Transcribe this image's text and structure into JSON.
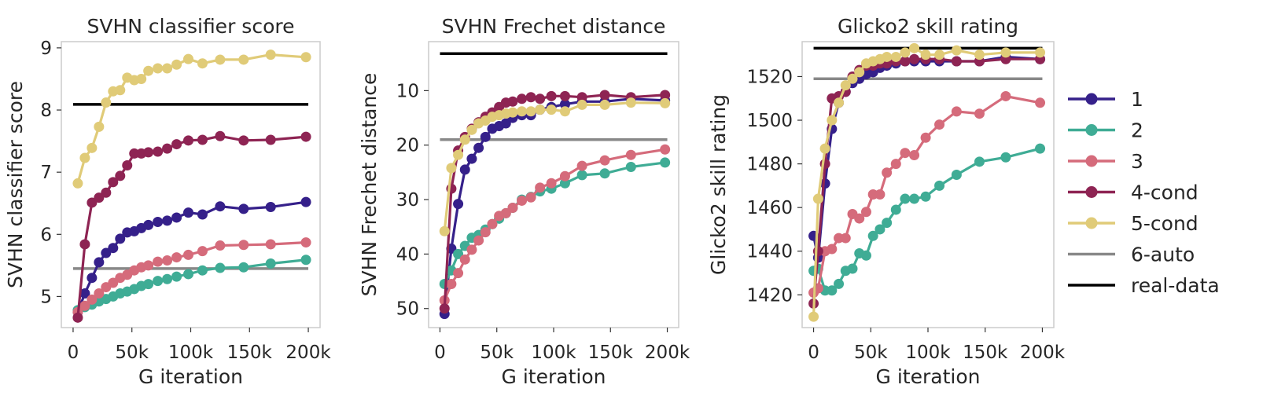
{
  "chart_data": [
    {
      "type": "line",
      "title": "SVHN classifier score",
      "xlabel": "G iteration",
      "ylabel": "SVHN classifier score",
      "xlim": [
        -10000,
        210000
      ],
      "ylim": [
        4.5,
        9.1
      ],
      "xticks": [
        0,
        50000,
        100000,
        150000,
        200000
      ],
      "xtick_labels": [
        "0",
        "50k",
        "100k",
        "150k",
        "200k"
      ],
      "yticks": [
        5,
        6,
        7,
        8,
        9
      ],
      "ytick_labels": [
        "5",
        "6",
        "7",
        "8",
        "9"
      ],
      "series": [
        {
          "name": "1",
          "x": [
            4000,
            10000,
            16000,
            22000,
            28000,
            34000,
            40000,
            46000,
            52000,
            58000,
            64000,
            72000,
            80000,
            88000,
            98000,
            110000,
            125000,
            145000,
            168000,
            198000
          ],
          "y": [
            4.75,
            5.05,
            5.3,
            5.55,
            5.7,
            5.78,
            5.93,
            6.03,
            6.05,
            6.1,
            6.15,
            6.2,
            6.22,
            6.27,
            6.35,
            6.32,
            6.45,
            6.41,
            6.44,
            6.52
          ]
        },
        {
          "name": "2",
          "x": [
            4000,
            10000,
            16000,
            22000,
            28000,
            34000,
            40000,
            46000,
            52000,
            58000,
            64000,
            72000,
            80000,
            88000,
            98000,
            110000,
            125000,
            145000,
            168000,
            198000
          ],
          "y": [
            4.78,
            4.83,
            4.87,
            4.92,
            4.96,
            5.0,
            5.05,
            5.08,
            5.12,
            5.17,
            5.2,
            5.25,
            5.28,
            5.32,
            5.36,
            5.42,
            5.46,
            5.47,
            5.53,
            5.59
          ]
        },
        {
          "name": "3",
          "x": [
            4000,
            10000,
            16000,
            22000,
            28000,
            34000,
            40000,
            46000,
            52000,
            58000,
            64000,
            72000,
            80000,
            88000,
            98000,
            110000,
            125000,
            145000,
            168000,
            198000
          ],
          "y": [
            4.75,
            4.85,
            4.95,
            5.05,
            5.15,
            5.22,
            5.3,
            5.35,
            5.42,
            5.47,
            5.5,
            5.56,
            5.58,
            5.63,
            5.67,
            5.73,
            5.82,
            5.83,
            5.84,
            5.87
          ]
        },
        {
          "name": "4-cond",
          "x": [
            4000,
            10000,
            16000,
            22000,
            28000,
            34000,
            40000,
            46000,
            52000,
            58000,
            64000,
            72000,
            80000,
            88000,
            98000,
            110000,
            125000,
            145000,
            168000,
            198000
          ],
          "y": [
            4.66,
            5.84,
            6.51,
            6.59,
            6.67,
            6.84,
            6.94,
            7.11,
            7.3,
            7.3,
            7.32,
            7.33,
            7.38,
            7.45,
            7.51,
            7.52,
            7.58,
            7.51,
            7.52,
            7.57
          ]
        },
        {
          "name": "5-cond",
          "x": [
            4000,
            10000,
            16000,
            22000,
            28000,
            34000,
            40000,
            46000,
            52000,
            58000,
            64000,
            72000,
            80000,
            88000,
            98000,
            110000,
            125000,
            145000,
            168000,
            198000
          ],
          "y": [
            6.82,
            7.23,
            7.39,
            7.73,
            8.12,
            8.3,
            8.32,
            8.52,
            8.48,
            8.5,
            8.63,
            8.67,
            8.67,
            8.73,
            8.82,
            8.75,
            8.81,
            8.81,
            8.89,
            8.85
          ]
        },
        {
          "name": "6-auto",
          "y_const": 5.45
        },
        {
          "name": "real-data",
          "y_const": 8.09
        }
      ]
    },
    {
      "type": "line",
      "title": "SVHN Frechet distance",
      "xlabel": "G iteration",
      "ylabel": "SVHN Frechet distance",
      "xlim": [
        -10000,
        210000
      ],
      "ylim": [
        53.5,
        1
      ],
      "inverted_y": true,
      "xticks": [
        0,
        50000,
        100000,
        150000,
        200000
      ],
      "xtick_labels": [
        "0",
        "50k",
        "100k",
        "150k",
        "200k"
      ],
      "yticks": [
        10,
        20,
        30,
        40,
        50
      ],
      "ytick_labels": [
        "10",
        "20",
        "30",
        "40",
        "50"
      ],
      "series": [
        {
          "name": "1",
          "x": [
            4000,
            10000,
            16000,
            22000,
            28000,
            34000,
            40000,
            46000,
            52000,
            58000,
            64000,
            72000,
            80000,
            88000,
            98000,
            110000,
            125000,
            145000,
            168000,
            198000
          ],
          "y": [
            51,
            39,
            30.8,
            24.5,
            22.5,
            20.5,
            18.5,
            17,
            16.5,
            16,
            15,
            14.5,
            14.5,
            13.5,
            13,
            12.5,
            12,
            12,
            11.5,
            11.8
          ]
        },
        {
          "name": "2",
          "x": [
            4000,
            10000,
            16000,
            22000,
            28000,
            34000,
            40000,
            46000,
            52000,
            58000,
            64000,
            72000,
            80000,
            88000,
            98000,
            110000,
            125000,
            145000,
            168000,
            198000
          ],
          "y": [
            45.5,
            43,
            40,
            38.5,
            37,
            36.5,
            35.5,
            34.5,
            33.5,
            32.5,
            31.5,
            30,
            29.5,
            28.5,
            28,
            27,
            25.5,
            25.2,
            24,
            23.2
          ]
        },
        {
          "name": "3",
          "x": [
            4000,
            10000,
            16000,
            22000,
            28000,
            34000,
            40000,
            46000,
            52000,
            58000,
            64000,
            72000,
            80000,
            88000,
            98000,
            110000,
            125000,
            145000,
            168000,
            198000
          ],
          "y": [
            48.5,
            45.5,
            43.5,
            41,
            39.2,
            37.5,
            36,
            34.5,
            33,
            32.5,
            31.5,
            30.2,
            29.6,
            27.8,
            27,
            25.7,
            23.8,
            22.8,
            21.8,
            20.8
          ]
        },
        {
          "name": "4-cond",
          "x": [
            4000,
            10000,
            16000,
            22000,
            28000,
            34000,
            40000,
            46000,
            52000,
            58000,
            64000,
            72000,
            80000,
            88000,
            98000,
            110000,
            125000,
            145000,
            168000,
            198000
          ],
          "y": [
            50,
            28,
            21,
            18.5,
            17,
            15.8,
            14.8,
            14,
            13,
            12.2,
            12,
            11.5,
            11.2,
            11.5,
            11,
            11,
            11.2,
            10.8,
            11.2,
            10.8
          ]
        },
        {
          "name": "5-cond",
          "x": [
            4000,
            10000,
            16000,
            22000,
            28000,
            34000,
            40000,
            46000,
            52000,
            58000,
            64000,
            72000,
            80000,
            88000,
            98000,
            110000,
            125000,
            145000,
            168000,
            198000
          ],
          "y": [
            35.8,
            24.2,
            21.8,
            19,
            17.2,
            16,
            15.5,
            14.8,
            14.5,
            14.2,
            14,
            13.8,
            13.8,
            13.5,
            13.5,
            13.8,
            12.6,
            12.6,
            12.2,
            12.3
          ]
        },
        {
          "name": "6-auto",
          "y_const": 19
        },
        {
          "name": "real-data",
          "y_const": 3.2
        }
      ]
    },
    {
      "type": "line",
      "title": "Glicko2 skill rating",
      "xlabel": "G iteration",
      "ylabel": "Glicko2 skill rating",
      "xlim": [
        -10000,
        210000
      ],
      "ylim": [
        1405,
        1536
      ],
      "xticks": [
        0,
        50000,
        100000,
        150000,
        200000
      ],
      "xtick_labels": [
        "0",
        "50k",
        "100k",
        "150k",
        "200k"
      ],
      "yticks": [
        1420,
        1440,
        1460,
        1480,
        1500,
        1520
      ],
      "ytick_labels": [
        "1420",
        "1440",
        "1460",
        "1480",
        "1500",
        "1520"
      ],
      "series": [
        {
          "name": "1",
          "x": [
            0,
            4000,
            10000,
            16000,
            22000,
            28000,
            34000,
            40000,
            46000,
            52000,
            58000,
            64000,
            72000,
            80000,
            88000,
            98000,
            110000,
            125000,
            145000,
            168000,
            198000
          ],
          "y": [
            1447,
            1437,
            1471,
            1496,
            1508,
            1513,
            1517,
            1519,
            1521,
            1522,
            1524,
            1525,
            1526,
            1527,
            1527,
            1527,
            1527,
            1527,
            1527,
            1529,
            1528
          ]
        },
        {
          "name": "2",
          "x": [
            0,
            4000,
            10000,
            16000,
            22000,
            28000,
            34000,
            40000,
            46000,
            52000,
            58000,
            64000,
            72000,
            80000,
            88000,
            98000,
            110000,
            125000,
            145000,
            168000,
            198000
          ],
          "y": [
            1431,
            1432,
            1422,
            1422,
            1425,
            1431,
            1432,
            1439,
            1438,
            1447,
            1450,
            1453,
            1459,
            1464,
            1464,
            1465,
            1470,
            1475,
            1481,
            1483,
            1487
          ]
        },
        {
          "name": "3",
          "x": [
            0,
            4000,
            10000,
            16000,
            22000,
            28000,
            34000,
            40000,
            46000,
            52000,
            58000,
            64000,
            72000,
            80000,
            88000,
            98000,
            110000,
            125000,
            145000,
            168000,
            198000
          ],
          "y": [
            1421,
            1423,
            1440,
            1441,
            1446,
            1446,
            1457,
            1455,
            1458,
            1466,
            1466,
            1476,
            1480,
            1485,
            1484,
            1492,
            1498,
            1504,
            1503,
            1511,
            1508
          ]
        },
        {
          "name": "4-cond",
          "x": [
            0,
            4000,
            10000,
            16000,
            22000,
            28000,
            34000,
            40000,
            46000,
            52000,
            58000,
            64000,
            72000,
            80000,
            88000,
            98000,
            110000,
            125000,
            145000,
            168000,
            198000
          ],
          "y": [
            1416,
            1440,
            1480,
            1510,
            1511,
            1513,
            1520,
            1523,
            1525,
            1525,
            1526,
            1526,
            1527,
            1527,
            1528,
            1528,
            1528,
            1527,
            1527,
            1528,
            1528
          ]
        },
        {
          "name": "5-cond",
          "x": [
            0,
            4000,
            10000,
            16000,
            22000,
            28000,
            34000,
            40000,
            46000,
            52000,
            58000,
            64000,
            72000,
            80000,
            88000,
            98000,
            110000,
            125000,
            145000,
            168000,
            198000
          ],
          "y": [
            1410,
            1464,
            1487,
            1500,
            1508,
            1516,
            1519,
            1522,
            1526,
            1527,
            1528,
            1529,
            1529,
            1531,
            1533,
            1530,
            1530,
            1532,
            1530,
            1531,
            1531
          ]
        },
        {
          "name": "6-auto",
          "y_const": 1519
        },
        {
          "name": "real-data",
          "y_const": 1533
        }
      ]
    }
  ],
  "legend": {
    "placement": "right",
    "entries": [
      {
        "label": "1",
        "color": "#35208a",
        "marker": true
      },
      {
        "label": "2",
        "color": "#3fac95",
        "marker": true
      },
      {
        "label": "3",
        "color": "#d56b7b",
        "marker": true
      },
      {
        "label": "4-cond",
        "color": "#8e2453",
        "marker": true
      },
      {
        "label": "5-cond",
        "color": "#e0cb78",
        "marker": true
      },
      {
        "label": "6-auto",
        "color": "#888888",
        "marker": false
      },
      {
        "label": "real-data",
        "color": "#000000",
        "marker": false
      }
    ]
  }
}
